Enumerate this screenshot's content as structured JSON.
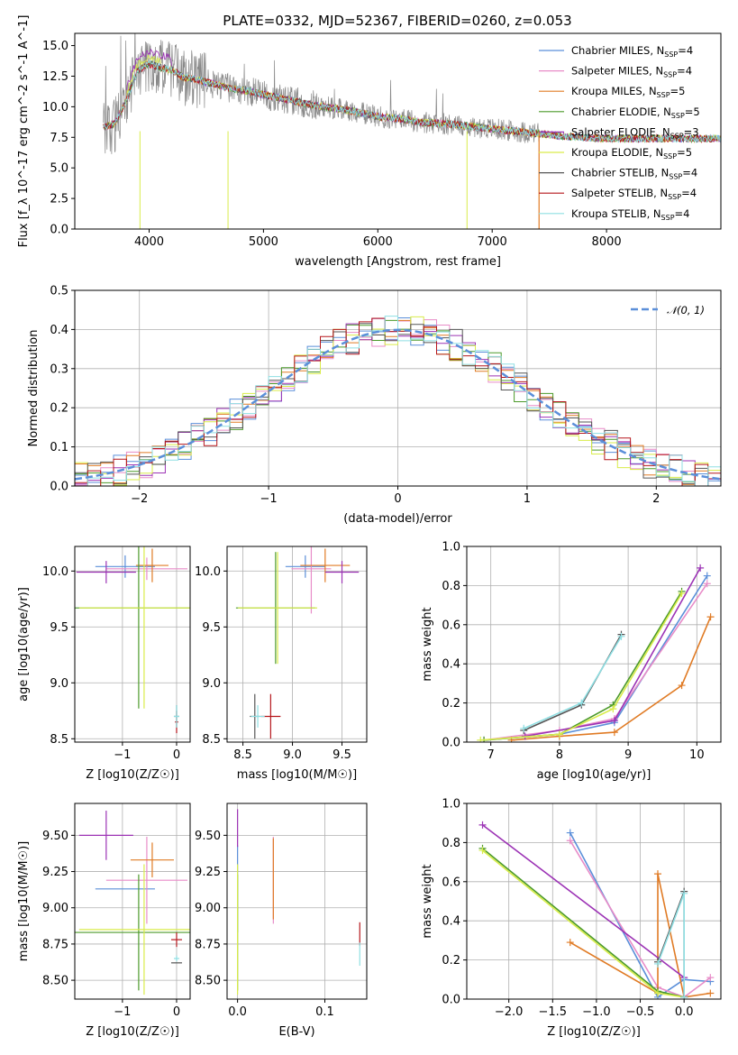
{
  "figure": {
    "title": "PLATE=0332, MJD=52367, FIBERID=0260, z=0.053"
  },
  "colors": {
    "chabrier_miles": "#5b8fd9",
    "salpeter_miles": "#e88cc8",
    "kroupa_miles": "#e07b25",
    "chabrier_elodie": "#4c9a2a",
    "salpeter_elodie": "#9c33b5",
    "kroupa_elodie": "#d9ec4a",
    "chabrier_stelib": "#555555",
    "salpeter_stelib": "#b5171c",
    "kroupa_stelib": "#8fdfe3",
    "normal": "#5b8fd9",
    "data": "#888888"
  },
  "chart_data": [
    {
      "type": "line",
      "panel": "spectrum",
      "xlabel": "wavelength [Angstrom, rest frame]",
      "ylabel": "Flux [f_λ 10^-17 erg cm^-2 s^-1 A^-1]",
      "xlim": [
        3350,
        9000
      ],
      "ylim": [
        0,
        16
      ],
      "xticks": [
        "4000",
        "5000",
        "6000",
        "7000",
        "8000"
      ],
      "yticks": [
        "0.0",
        "2.5",
        "5.0",
        "7.5",
        "10.0",
        "12.5",
        "15.0"
      ],
      "legend_position": "top-right",
      "legend": [
        {
          "text": "Chabrier MILES, N",
          "sub": "SSP",
          "suffix": "=4",
          "color": "chabrier_miles"
        },
        {
          "text": "Salpeter MILES, N",
          "sub": "SSP",
          "suffix": "=4",
          "color": "salpeter_miles"
        },
        {
          "text": "Kroupa MILES, N",
          "sub": "SSP",
          "suffix": "=5",
          "color": "kroupa_miles"
        },
        {
          "text": "Chabrier ELODIE, N",
          "sub": "SSP",
          "suffix": "=5",
          "color": "chabrier_elodie"
        },
        {
          "text": "Salpeter ELODIE, N",
          "sub": "SSP",
          "suffix": "=3",
          "color": "salpeter_elodie"
        },
        {
          "text": "Kroupa ELODIE, N",
          "sub": "SSP",
          "suffix": "=5",
          "color": "kroupa_elodie"
        },
        {
          "text": "Chabrier STELIB, N",
          "sub": "SSP",
          "suffix": "=4",
          "color": "chabrier_stelib"
        },
        {
          "text": "Salpeter STELIB, N",
          "sub": "SSP",
          "suffix": "=4",
          "color": "salpeter_stelib"
        },
        {
          "text": "Kroupa STELIB, N",
          "sub": "SSP",
          "suffix": "=4",
          "color": "kroupa_stelib"
        }
      ],
      "data_range": [
        3600,
        7410
      ],
      "model_continuum": [
        [
          3600,
          8.3
        ],
        [
          3700,
          8.6
        ],
        [
          3800,
          10.5
        ],
        [
          3900,
          13.0
        ],
        [
          4000,
          13.5
        ],
        [
          4100,
          13.2
        ],
        [
          4200,
          13.0
        ],
        [
          4300,
          12.4
        ],
        [
          4400,
          12.3
        ],
        [
          4500,
          12.0
        ],
        [
          4600,
          11.8
        ],
        [
          4700,
          11.5
        ],
        [
          4800,
          11.4
        ],
        [
          4900,
          11.2
        ],
        [
          5000,
          11.0
        ],
        [
          5200,
          10.6
        ],
        [
          5400,
          10.2
        ],
        [
          5600,
          9.9
        ],
        [
          5800,
          9.6
        ],
        [
          6000,
          9.2
        ],
        [
          6200,
          9.0
        ],
        [
          6400,
          8.7
        ],
        [
          6600,
          8.6
        ],
        [
          6800,
          8.4
        ],
        [
          7000,
          8.2
        ],
        [
          7200,
          8.0
        ],
        [
          7400,
          7.8
        ],
        [
          7600,
          7.6
        ],
        [
          7800,
          7.5
        ],
        [
          8000,
          7.4
        ],
        [
          8200,
          7.4
        ],
        [
          8400,
          7.4
        ],
        [
          8600,
          7.4
        ],
        [
          8800,
          7.4
        ],
        [
          9000,
          7.4
        ]
      ],
      "dips": [
        [
          3920,
          0
        ],
        [
          4690,
          0
        ],
        [
          6780,
          0
        ]
      ]
    },
    {
      "type": "line",
      "panel": "residual-histogram",
      "xlabel": "(data-model)/error",
      "ylabel": "Normed distribution",
      "xlim": [
        -2.5,
        2.5
      ],
      "ylim": [
        0,
        0.5
      ],
      "xticks": [
        "−2",
        "−1",
        "0",
        "1",
        "2"
      ],
      "yticks": [
        "0.0",
        "0.1",
        "0.2",
        "0.3",
        "0.4",
        "0.5"
      ],
      "legend_label": "𝒩(0, 1)",
      "bin_width": 0.1,
      "bin_start": -2.5
    },
    {
      "type": "scatter",
      "panel": "age-vs-Z",
      "xlabel": "Z [log10(Z/Z☉)]",
      "ylabel": "age  [log10(age/yr)]",
      "xlim": [
        -1.88,
        0.25
      ],
      "ylim": [
        8.47,
        10.22
      ],
      "xticks": [
        "−1",
        "0"
      ],
      "yticks": [
        "8.5",
        "9.0",
        "9.5",
        "10.0"
      ],
      "points": [
        {
          "x": -0.95,
          "y": 10.04,
          "xerr": 0.55,
          "yerr": 0.1,
          "color": "chabrier_miles"
        },
        {
          "x": -0.55,
          "y": 10.02,
          "xerr": 0.75,
          "yerr": 0.1,
          "color": "salpeter_miles"
        },
        {
          "x": -0.45,
          "y": 10.05,
          "xerr": 0.3,
          "yerr": 0.15,
          "color": "kroupa_miles"
        },
        {
          "x": -0.7,
          "y": 9.67,
          "xerr": 1.2,
          "yerr": 0.9,
          "color": "chabrier_elodie"
        },
        {
          "x": -1.3,
          "y": 9.99,
          "xerr": 0.55,
          "yerr": 0.1,
          "color": "salpeter_elodie"
        },
        {
          "x": -0.6,
          "y": 9.67,
          "xerr": 1.2,
          "yerr": 0.9,
          "color": "kroupa_elodie"
        },
        {
          "x": 0.0,
          "y": 8.7,
          "xerr": 0.05,
          "yerr": 0.1,
          "color": "chabrier_stelib"
        },
        {
          "x": 0.0,
          "y": 8.65,
          "xerr": 0.03,
          "yerr": 0.1,
          "color": "salpeter_stelib"
        },
        {
          "x": 0.0,
          "y": 8.7,
          "xerr": 0.05,
          "yerr": 0.1,
          "color": "kroupa_stelib"
        }
      ]
    },
    {
      "type": "scatter",
      "panel": "age-vs-mass",
      "xlabel": "mass [log10(M/M☉)]",
      "xlim": [
        8.34,
        9.75
      ],
      "ylim": [
        8.47,
        10.22
      ],
      "xticks": [
        "8.5",
        "9.0",
        "9.5"
      ],
      "yticks": [
        "8.5",
        "9.0",
        "9.5",
        "10.0"
      ],
      "points": [
        {
          "x": 9.13,
          "y": 10.04,
          "xerr": 0.2,
          "yerr": 0.1,
          "color": "chabrier_miles"
        },
        {
          "x": 9.19,
          "y": 10.02,
          "xerr": 0.2,
          "yerr": 0.4,
          "color": "salpeter_miles"
        },
        {
          "x": 9.33,
          "y": 10.05,
          "xerr": 0.25,
          "yerr": 0.15,
          "color": "kroupa_miles"
        },
        {
          "x": 8.83,
          "y": 9.67,
          "xerr": 0.4,
          "yerr": 0.5,
          "color": "chabrier_elodie"
        },
        {
          "x": 9.5,
          "y": 9.99,
          "xerr": 0.17,
          "yerr": 0.1,
          "color": "salpeter_elodie"
        },
        {
          "x": 8.85,
          "y": 9.67,
          "xerr": 0.4,
          "yerr": 0.5,
          "color": "kroupa_elodie"
        },
        {
          "x": 8.62,
          "y": 8.7,
          "xerr": 0.05,
          "yerr": 0.2,
          "color": "chabrier_stelib"
        },
        {
          "x": 8.78,
          "y": 8.7,
          "xerr": 0.1,
          "yerr": 0.2,
          "color": "salpeter_stelib"
        },
        {
          "x": 8.65,
          "y": 8.7,
          "xerr": 0.07,
          "yerr": 0.1,
          "color": "kroupa_stelib"
        }
      ]
    },
    {
      "type": "line",
      "panel": "mass-weight-vs-age",
      "xlabel": "age  [log10(age/yr)]",
      "ylabel": "mass weight",
      "xlim": [
        6.65,
        10.35
      ],
      "ylim": [
        0,
        1
      ],
      "xticks": [
        "7",
        "8",
        "9",
        "10"
      ],
      "yticks": [
        "0.0",
        "0.2",
        "0.4",
        "0.6",
        "0.8",
        "1.0"
      ],
      "series": [
        {
          "color": "chabrier_miles",
          "points": [
            [
              6.9,
              0.01
            ],
            [
              8.0,
              0.04
            ],
            [
              8.8,
              0.1
            ],
            [
              10.15,
              0.85
            ]
          ]
        },
        {
          "color": "salpeter_miles",
          "points": [
            [
              6.9,
              0.01
            ],
            [
              8.0,
              0.06
            ],
            [
              8.8,
              0.12
            ],
            [
              10.15,
              0.81
            ]
          ]
        },
        {
          "color": "kroupa_miles",
          "points": [
            [
              7.3,
              0.01
            ],
            [
              8.0,
              0.03
            ],
            [
              8.8,
              0.05
            ],
            [
              9.78,
              0.29
            ],
            [
              10.2,
              0.64
            ]
          ]
        },
        {
          "color": "chabrier_elodie",
          "points": [
            [
              6.9,
              0.01
            ],
            [
              8.0,
              0.04
            ],
            [
              8.78,
              0.19
            ],
            [
              9.78,
              0.77
            ]
          ]
        },
        {
          "color": "salpeter_elodie",
          "points": [
            [
              7.5,
              0.03
            ],
            [
              8.8,
              0.11
            ],
            [
              10.05,
              0.89
            ]
          ]
        },
        {
          "color": "kroupa_elodie",
          "points": [
            [
              6.85,
              0.01
            ],
            [
              8.0,
              0.04
            ],
            [
              8.78,
              0.17
            ],
            [
              9.78,
              0.76
            ]
          ]
        },
        {
          "color": "chabrier_stelib",
          "points": [
            [
              7.48,
              0.06
            ],
            [
              8.32,
              0.19
            ],
            [
              8.9,
              0.55
            ]
          ]
        },
        {
          "color": "kroupa_stelib",
          "points": [
            [
              7.48,
              0.07
            ],
            [
              8.32,
              0.2
            ],
            [
              8.9,
              0.54
            ]
          ]
        }
      ]
    },
    {
      "type": "scatter",
      "panel": "mass-vs-Z",
      "xlabel": "Z [log10(Z/Z☉)]",
      "ylabel": "mass [log10(M/M☉)]",
      "xlim": [
        -1.88,
        0.25
      ],
      "ylim": [
        8.37,
        9.72
      ],
      "xticks": [
        "−1",
        "0"
      ],
      "yticks": [
        "8.50",
        "8.75",
        "9.00",
        "9.25",
        "9.50"
      ],
      "points": [
        {
          "x": -0.95,
          "y": 9.13,
          "xerr": 0.55,
          "yerr": 0.0,
          "color": "chabrier_miles"
        },
        {
          "x": -0.55,
          "y": 9.19,
          "xerr": 0.75,
          "yerr": 0.3,
          "color": "salpeter_miles"
        },
        {
          "x": -0.45,
          "y": 9.33,
          "xerr": 0.4,
          "yerr": 0.12,
          "color": "kroupa_miles"
        },
        {
          "x": -0.7,
          "y": 8.83,
          "xerr": 1.2,
          "yerr": 0.4,
          "color": "chabrier_elodie"
        },
        {
          "x": -1.3,
          "y": 9.5,
          "xerr": 0.5,
          "yerr": 0.17,
          "color": "salpeter_elodie"
        },
        {
          "x": -0.6,
          "y": 8.85,
          "xerr": 1.2,
          "yerr": 0.45,
          "color": "kroupa_elodie"
        },
        {
          "x": 0.0,
          "y": 8.62,
          "xerr": 0.1,
          "yerr": 0.0,
          "color": "chabrier_stelib"
        },
        {
          "x": 0.0,
          "y": 8.78,
          "xerr": 0.1,
          "yerr": 0.05,
          "color": "salpeter_stelib"
        },
        {
          "x": 0.0,
          "y": 8.65,
          "xerr": 0.05,
          "yerr": 0.02,
          "color": "kroupa_stelib"
        }
      ]
    },
    {
      "type": "scatter",
      "panel": "mass-vs-EBV",
      "xlabel": "E(B-V)",
      "xlim": [
        -0.012,
        0.148
      ],
      "ylim": [
        8.37,
        9.72
      ],
      "xticks": [
        "0.0",
        "0.1"
      ],
      "yticks": [
        "8.50",
        "8.75",
        "9.00",
        "9.25",
        "9.50"
      ],
      "points": [
        {
          "x": 0.0,
          "y": 9.13,
          "yerr": 0.3,
          "color": "chabrier_miles"
        },
        {
          "x": 0.041,
          "y": 9.19,
          "yerr": 0.3,
          "color": "salpeter_miles"
        },
        {
          "x": 0.041,
          "y": 9.2,
          "yerr": 0.28,
          "color": "kroupa_miles"
        },
        {
          "x": 0.0,
          "y": 8.83,
          "yerr": 0.4,
          "color": "chabrier_elodie"
        },
        {
          "x": 0.0,
          "y": 9.55,
          "yerr": 0.13,
          "color": "salpeter_elodie"
        },
        {
          "x": 0.0,
          "y": 8.85,
          "yerr": 0.45,
          "color": "kroupa_elodie"
        },
        {
          "x": 0.14,
          "y": 8.82,
          "yerr": 0.08,
          "color": "salpeter_stelib"
        },
        {
          "x": 0.14,
          "y": 8.68,
          "yerr": 0.08,
          "color": "kroupa_stelib"
        }
      ]
    },
    {
      "type": "line",
      "panel": "mass-weight-vs-Z",
      "xlabel": "Z [log10(Z/Z☉)]",
      "ylabel": "mass weight",
      "xlim": [
        -2.48,
        0.42
      ],
      "ylim": [
        0,
        1
      ],
      "xticks": [
        "−2.0",
        "−1.5",
        "−1.0",
        "−0.5",
        "0.0"
      ],
      "yticks": [
        "0.0",
        "0.2",
        "0.4",
        "0.6",
        "0.8",
        "1.0"
      ],
      "series": [
        {
          "color": "chabrier_miles",
          "points": [
            [
              -1.3,
              0.85
            ],
            [
              -0.3,
              0.01
            ],
            [
              0.0,
              0.1
            ],
            [
              0.3,
              0.09
            ]
          ]
        },
        {
          "color": "salpeter_miles",
          "points": [
            [
              -1.3,
              0.81
            ],
            [
              -0.3,
              0.06
            ],
            [
              0.0,
              0.01
            ],
            [
              0.3,
              0.11
            ]
          ]
        },
        {
          "color": "kroupa_miles",
          "points": [
            [
              -1.3,
              0.29
            ],
            [
              -0.3,
              0.03
            ],
            [
              -0.3,
              0.64
            ],
            [
              0.0,
              0.01
            ],
            [
              0.3,
              0.03
            ]
          ]
        },
        {
          "color": "chabrier_elodie",
          "points": [
            [
              -2.3,
              0.77
            ],
            [
              -0.3,
              0.04
            ],
            [
              0.0,
              0.01
            ]
          ]
        },
        {
          "color": "salpeter_elodie",
          "points": [
            [
              -2.3,
              0.89
            ],
            [
              0.0,
              0.11
            ],
            [
              0.0,
              0.01
            ]
          ]
        },
        {
          "color": "kroupa_elodie",
          "points": [
            [
              -2.3,
              0.76
            ],
            [
              -0.3,
              0.03
            ],
            [
              0.0,
              0.01
            ]
          ]
        },
        {
          "color": "chabrier_stelib",
          "points": [
            [
              -0.3,
              0.19
            ],
            [
              0.0,
              0.55
            ],
            [
              0.0,
              0.01
            ]
          ]
        },
        {
          "color": "kroupa_stelib",
          "points": [
            [
              -0.3,
              0.18
            ],
            [
              0.0,
              0.54
            ],
            [
              0.0,
              0.01
            ]
          ]
        }
      ]
    }
  ]
}
